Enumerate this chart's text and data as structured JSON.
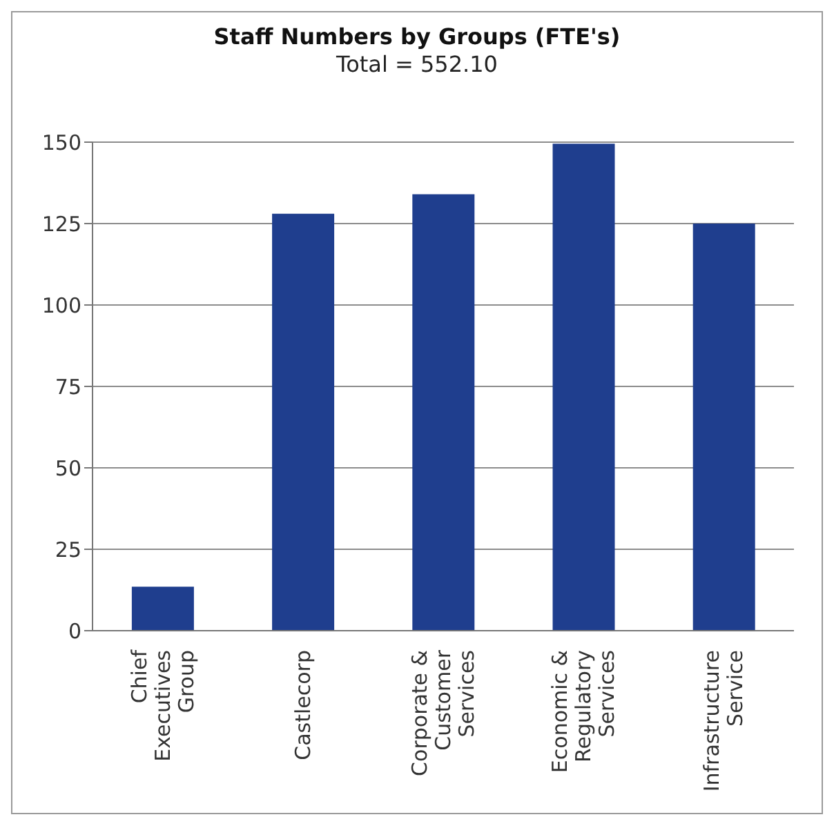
{
  "chart_data": {
    "type": "bar",
    "title": "Staff Numbers by Groups (FTE's)",
    "subtitle": "Total = 552.10",
    "categories": [
      "Chief Executives Group",
      "Castlecorp",
      "Corporate & Customer Services",
      "Economic & Regulatory Services",
      "Infrastructure Service"
    ],
    "values": [
      13.5,
      128,
      134,
      149.5,
      125
    ],
    "color": "#1f3e8e",
    "ylim": [
      0,
      150
    ],
    "yticks": [
      0,
      25,
      50,
      75,
      100,
      125,
      150
    ],
    "grid": "y"
  }
}
